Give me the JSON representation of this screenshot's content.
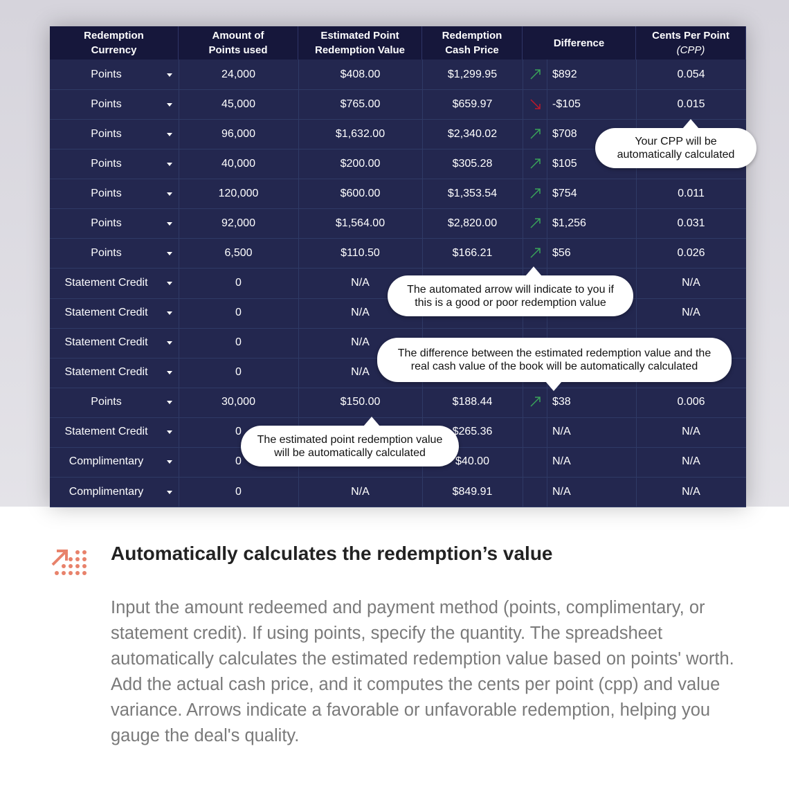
{
  "table": {
    "headers": [
      [
        "Redemption",
        "Currency"
      ],
      [
        "Amount of",
        "Points used"
      ],
      [
        "Estimated Point",
        "Redemption Value"
      ],
      [
        "Redemption",
        "Cash Price"
      ],
      [
        "Difference"
      ],
      [
        "Cents Per Point",
        "(CPP)"
      ]
    ],
    "rows": [
      [
        "Points",
        "24,000",
        "$408.00",
        "$1,299.95",
        "$892",
        "0.054"
      ],
      [
        "Points",
        "45,000",
        "$765.00",
        "$659.97",
        "-$105",
        "0.015"
      ],
      [
        "Points",
        "96,000",
        "$1,632.00",
        "$2,340.02",
        "$708",
        null
      ],
      [
        "Points",
        "40,000",
        "$200.00",
        "$305.28",
        "$105",
        null
      ],
      [
        "Points",
        "120,000",
        "$600.00",
        "$1,353.54",
        "$754",
        "0.011"
      ],
      [
        "Points",
        "92,000",
        "$1,564.00",
        "$2,820.00",
        "$1,256",
        "0.031"
      ],
      [
        "Points",
        "6,500",
        "$110.50",
        "$166.21",
        "$56",
        "0.026"
      ],
      [
        "Statement Credit",
        "0",
        "N/A",
        null,
        null,
        "N/A"
      ],
      [
        "Statement Credit",
        "0",
        "N/A",
        null,
        null,
        "N/A"
      ],
      [
        "Statement Credit",
        "0",
        "N/A",
        null,
        null,
        null
      ],
      [
        "Statement Credit",
        "0",
        "N/A",
        null,
        null,
        null
      ],
      [
        "Points",
        "30,000",
        "$150.00",
        "$188.44",
        "$38",
        "0.006"
      ],
      [
        "Statement Credit",
        "0",
        null,
        "$265.36",
        "N/A",
        "N/A"
      ],
      [
        "Complimentary",
        "0",
        null,
        "$40.00",
        "N/A",
        "N/A"
      ],
      [
        "Complimentary",
        "0",
        "N/A",
        "$849.91",
        "N/A",
        "N/A"
      ]
    ]
  },
  "callouts": [
    [
      "Your CPP will be",
      "automatically calculated"
    ],
    [
      "The automated arrow will indicate to you if",
      "this is a good or poor redemption value"
    ],
    [
      "The difference between the estimated redemption value and the",
      "real cash value of the book will be automatically calculated"
    ],
    [
      "The estimated point redemption value",
      "will be automatically calculated"
    ]
  ],
  "feature": {
    "title": "Automatically calculates the redemption’s value",
    "body": "Input the amount redeemed and payment method (points, complimentary, or statement credit). If using points, specify the quantity. The spreadsheet automatically calculates the estimated redemption value based on points' worth. Add the actual cash price, and it computes the cents per point (cpp) and value variance. Arrows indicate a favorable or unfavorable redemption, helping you gauge the deal's quality."
  }
}
